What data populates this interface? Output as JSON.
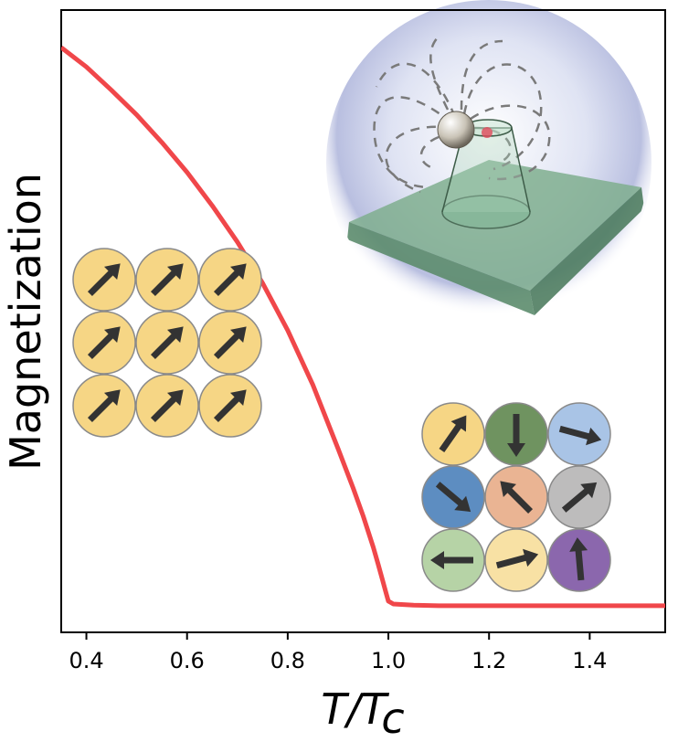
{
  "chart_data": {
    "type": "line",
    "title": "",
    "xlabel_main": "T/T",
    "xlabel_sub": "c",
    "ylabel": "Magnetization",
    "xlim": [
      0.35,
      1.55
    ],
    "ylim": [
      0,
      1
    ],
    "grid": false,
    "x_ticks": [
      0.4,
      0.6,
      0.8,
      1.0,
      1.2,
      1.4
    ],
    "x_tick_labels": [
      "0.4",
      "0.6",
      "0.8",
      "1.0",
      "1.2",
      "1.4"
    ],
    "y_ticks": [],
    "series": [
      {
        "name": "magnetization",
        "color": "#f0474a",
        "x": [
          0.35,
          0.4,
          0.45,
          0.5,
          0.55,
          0.6,
          0.65,
          0.7,
          0.75,
          0.8,
          0.85,
          0.9,
          0.93,
          0.95,
          0.97,
          0.98,
          0.99,
          0.995,
          1.0,
          1.01,
          1.05,
          1.1,
          1.2,
          1.3,
          1.4,
          1.55
        ],
        "y": [
          0.95,
          0.917,
          0.877,
          0.835,
          0.788,
          0.737,
          0.68,
          0.618,
          0.548,
          0.467,
          0.374,
          0.265,
          0.198,
          0.15,
          0.097,
          0.067,
          0.036,
          0.02,
          0.005,
          0.0,
          -0.002,
          -0.003,
          -0.003,
          -0.003,
          -0.003,
          -0.003
        ]
      }
    ]
  },
  "insets": {
    "ordered_lattice": {
      "description_name": "ordered-spin-lattice",
      "fill": "#f6d685",
      "arrow_angles_deg": [
        45,
        45,
        45,
        45,
        45,
        45,
        45,
        45,
        45
      ]
    },
    "disordered_lattice": {
      "description_name": "disordered-spin-lattice",
      "fills": [
        "#f6d685",
        "#6f9360",
        "#a9c4e6",
        "#5d8dc1",
        "#eab493",
        "#bdbcbc",
        "#b6d3a6",
        "#f8e1a4",
        "#8b67ad"
      ],
      "arrow_angles_deg": [
        55,
        -90,
        -15,
        -40,
        135,
        40,
        180,
        15,
        95
      ]
    },
    "magnet_illustration": {
      "name": "magnetic-tip-illustration"
    }
  }
}
